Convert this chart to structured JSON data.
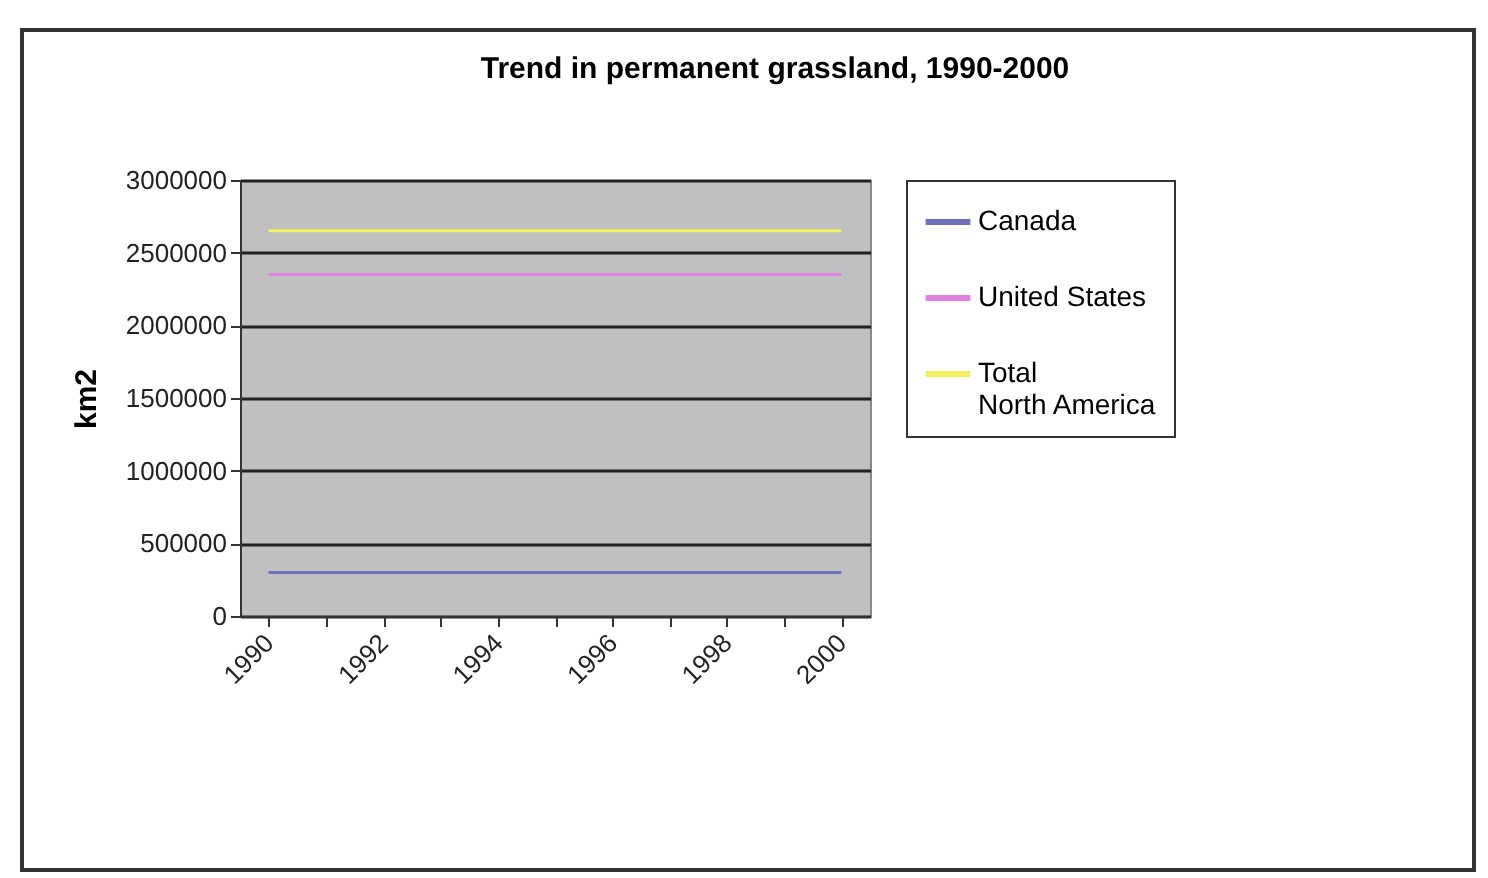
{
  "chart_data": {
    "type": "line",
    "title": "Trend in permanent grassland, 1990-2000",
    "ylabel": "km2",
    "categories": [
      "1990",
      null,
      "1992",
      null,
      "1994",
      null,
      "1996",
      null,
      "1998",
      null,
      "2000"
    ],
    "series": [
      {
        "name": "Canada",
        "color": "#7070b8",
        "values": [
          300000,
          300000,
          300000,
          300000,
          300000,
          300000,
          300000,
          300000,
          300000,
          300000,
          300000
        ]
      },
      {
        "name": "United States",
        "color": "#e080e0",
        "values": [
          2350000,
          2350000,
          2350000,
          2350000,
          2350000,
          2350000,
          2350000,
          2350000,
          2350000,
          2350000,
          2350000
        ]
      },
      {
        "name": "Total North America",
        "color": "#f0f060",
        "values": [
          2650000,
          2650000,
          2650000,
          2650000,
          2650000,
          2650000,
          2650000,
          2650000,
          2650000,
          2650000,
          2650000
        ]
      }
    ],
    "ylim": [
      0,
      3000000
    ],
    "yticks": [
      0,
      500000,
      1000000,
      1500000,
      2000000,
      2500000,
      3000000
    ],
    "grid": "y",
    "legend": "right",
    "marker": "none",
    "line_style": "solid"
  }
}
